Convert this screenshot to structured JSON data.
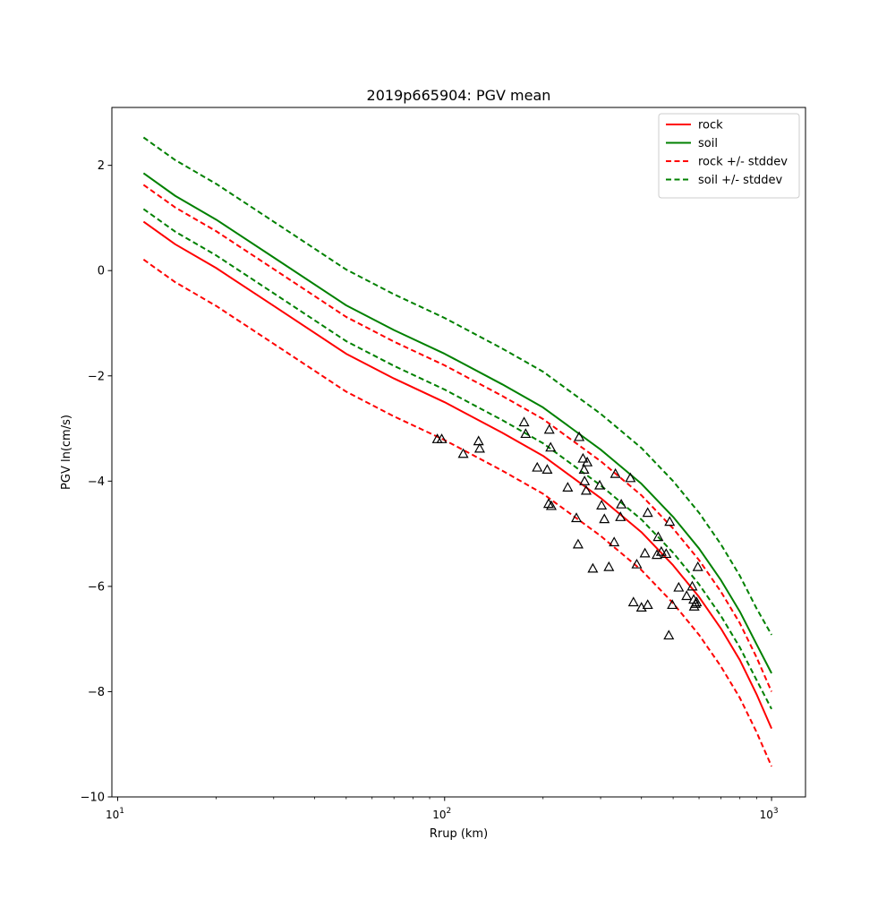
{
  "chart_data": {
    "type": "line",
    "title": "2019p665904: PGV mean",
    "xlabel": "Rrup (km)",
    "ylabel": "PGV ln(cm/s)",
    "xscale": "log",
    "xlim": [
      9.6,
      1270
    ],
    "ylim": [
      -10,
      3.1
    ],
    "xticks": [
      {
        "value": 10,
        "base": "10",
        "exp": "1"
      },
      {
        "value": 100,
        "base": "10",
        "exp": "2"
      },
      {
        "value": 1000,
        "base": "10",
        "exp": "3"
      }
    ],
    "yticks": [
      {
        "value": 2,
        "label": "2"
      },
      {
        "value": 0,
        "label": "0"
      },
      {
        "value": -2,
        "label": "−2"
      },
      {
        "value": -4,
        "label": "−4"
      },
      {
        "value": -6,
        "label": "−6"
      },
      {
        "value": -8,
        "label": "−8"
      },
      {
        "value": -10,
        "label": "−10"
      }
    ],
    "grid": false,
    "legend_position": "top-right",
    "series": [
      {
        "name": "rock",
        "color": "#ff0000",
        "style": "solid",
        "x": [
          12,
          15,
          20,
          30,
          50,
          70,
          100,
          150,
          200,
          300,
          400,
          500,
          600,
          700,
          800,
          900,
          1000
        ],
        "y": [
          0.93,
          0.5,
          0.05,
          -0.67,
          -1.58,
          -2.05,
          -2.5,
          -3.08,
          -3.52,
          -4.32,
          -4.97,
          -5.6,
          -6.2,
          -6.8,
          -7.4,
          -8.05,
          -8.7
        ]
      },
      {
        "name": "soil",
        "color": "#008000",
        "style": "solid",
        "x": [
          12,
          15,
          20,
          30,
          50,
          70,
          100,
          150,
          200,
          300,
          400,
          500,
          600,
          700,
          800,
          900,
          1000
        ],
        "y": [
          1.85,
          1.42,
          0.97,
          0.25,
          -0.66,
          -1.13,
          -1.58,
          -2.16,
          -2.6,
          -3.4,
          -4.05,
          -4.68,
          -5.28,
          -5.88,
          -6.48,
          -7.1,
          -7.65
        ]
      },
      {
        "name": "rock +/- stddev",
        "color": "#ff0000",
        "style": "dashed",
        "x": [
          12,
          15,
          20,
          30,
          50,
          70,
          100,
          150,
          200,
          300,
          400,
          500,
          600,
          700,
          800,
          900,
          1000
        ],
        "y": [
          1.63,
          1.2,
          0.75,
          0.03,
          -0.88,
          -1.35,
          -1.8,
          -2.38,
          -2.82,
          -3.62,
          -4.27,
          -4.9,
          -5.5,
          -6.1,
          -6.7,
          -7.35,
          -8.0
        ]
      },
      {
        "name": "",
        "color": "#ff0000",
        "style": "dashed",
        "x": [
          12,
          15,
          20,
          30,
          50,
          70,
          100,
          150,
          200,
          300,
          400,
          500,
          600,
          700,
          800,
          900,
          1000
        ],
        "y": [
          0.21,
          -0.22,
          -0.67,
          -1.39,
          -2.3,
          -2.77,
          -3.22,
          -3.8,
          -4.24,
          -5.04,
          -5.69,
          -6.32,
          -6.92,
          -7.52,
          -8.12,
          -8.77,
          -9.42
        ]
      },
      {
        "name": "soil +/- stddev",
        "color": "#008000",
        "style": "dashed",
        "x": [
          12,
          15,
          20,
          30,
          50,
          70,
          100,
          150,
          200,
          300,
          400,
          500,
          600,
          700,
          800,
          900,
          1000
        ],
        "y": [
          2.53,
          2.1,
          1.65,
          0.93,
          0.02,
          -0.45,
          -0.9,
          -1.48,
          -1.92,
          -2.72,
          -3.37,
          -4.0,
          -4.6,
          -5.2,
          -5.8,
          -6.42,
          -6.92
        ]
      },
      {
        "name": "",
        "color": "#008000",
        "style": "dashed",
        "x": [
          12,
          15,
          20,
          30,
          50,
          70,
          100,
          150,
          200,
          300,
          400,
          500,
          600,
          700,
          800,
          900,
          1000
        ],
        "y": [
          1.17,
          0.74,
          0.29,
          -0.43,
          -1.34,
          -1.81,
          -2.26,
          -2.84,
          -3.28,
          -4.08,
          -4.73,
          -5.36,
          -5.96,
          -6.56,
          -7.16,
          -7.78,
          -8.33
        ]
      }
    ],
    "observations": {
      "marker": "triangle",
      "color": "#000000",
      "points": [
        [
          95,
          -3.2
        ],
        [
          98,
          -3.2
        ],
        [
          114,
          -3.48
        ],
        [
          127,
          -3.24
        ],
        [
          128,
          -3.38
        ],
        [
          175,
          -2.88
        ],
        [
          177,
          -3.1
        ],
        [
          192,
          -3.74
        ],
        [
          206,
          -3.78
        ],
        [
          208,
          -4.43
        ],
        [
          209,
          -3.02
        ],
        [
          211,
          -3.36
        ],
        [
          212,
          -4.47
        ],
        [
          238,
          -4.12
        ],
        [
          253,
          -4.7
        ],
        [
          256,
          -5.2
        ],
        [
          258,
          -3.16
        ],
        [
          265,
          -3.57
        ],
        [
          267,
          -3.78
        ],
        [
          268,
          -4.0
        ],
        [
          271,
          -4.18
        ],
        [
          273,
          -3.64
        ],
        [
          284,
          -5.66
        ],
        [
          298,
          -4.08
        ],
        [
          302,
          -4.46
        ],
        [
          308,
          -4.72
        ],
        [
          318,
          -5.63
        ],
        [
          330,
          -5.16
        ],
        [
          333,
          -3.86
        ],
        [
          345,
          -4.68
        ],
        [
          347,
          -4.44
        ],
        [
          370,
          -3.94
        ],
        [
          378,
          -6.3
        ],
        [
          387,
          -5.58
        ],
        [
          400,
          -6.4
        ],
        [
          410,
          -5.37
        ],
        [
          418,
          -4.6
        ],
        [
          418,
          -6.35
        ],
        [
          446,
          -5.4
        ],
        [
          450,
          -5.06
        ],
        [
          460,
          -5.34
        ],
        [
          476,
          -5.38
        ],
        [
          485,
          -6.93
        ],
        [
          488,
          -4.77
        ],
        [
          497,
          -6.35
        ],
        [
          520,
          -6.02
        ],
        [
          550,
          -6.18
        ],
        [
          572,
          -6.0
        ],
        [
          578,
          -6.25
        ],
        [
          580,
          -6.38
        ],
        [
          585,
          -6.33
        ],
        [
          590,
          -6.3
        ],
        [
          595,
          -5.63
        ]
      ]
    }
  }
}
